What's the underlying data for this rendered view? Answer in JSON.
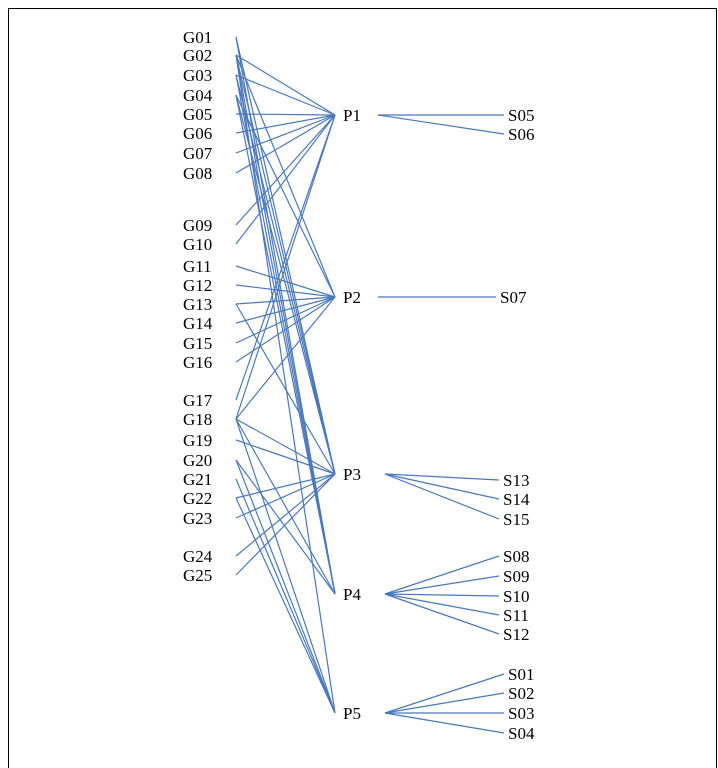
{
  "diagram": {
    "edge_color": "#4a78bd",
    "groups": {
      "G": [
        "G01",
        "G02",
        "G03",
        "G04",
        "G05",
        "G06",
        "G07",
        "G08",
        "G09",
        "G10",
        "G11",
        "G12",
        "G13",
        "G14",
        "G15",
        "G16",
        "G17",
        "G18",
        "G19",
        "G20",
        "G21",
        "G22",
        "G23",
        "G24",
        "G25"
      ],
      "P": [
        "P1",
        "P2",
        "P3",
        "P4",
        "P5"
      ],
      "S": [
        "S05",
        "S06",
        "S07",
        "S13",
        "S14",
        "S15",
        "S08",
        "S09",
        "S10",
        "S11",
        "S12",
        "S01",
        "S02",
        "S03",
        "S04"
      ]
    },
    "edges": [
      [
        "G01",
        "P3"
      ],
      [
        "G01",
        "P4"
      ],
      [
        "G02",
        "P1"
      ],
      [
        "G02",
        "P2"
      ],
      [
        "G02",
        "P3"
      ],
      [
        "G02",
        "P4"
      ],
      [
        "G02",
        "P5"
      ],
      [
        "G03",
        "P1"
      ],
      [
        "G03",
        "P3"
      ],
      [
        "G03",
        "P4"
      ],
      [
        "G04",
        "P2"
      ],
      [
        "G04",
        "P3"
      ],
      [
        "G04",
        "P4"
      ],
      [
        "G05",
        "P1"
      ],
      [
        "G06",
        "P1"
      ],
      [
        "G07",
        "P1"
      ],
      [
        "G08",
        "P1"
      ],
      [
        "G09",
        "P1"
      ],
      [
        "G10",
        "P1"
      ],
      [
        "G11",
        "P2"
      ],
      [
        "G12",
        "P2"
      ],
      [
        "G13",
        "P2"
      ],
      [
        "G13",
        "P3"
      ],
      [
        "G14",
        "P2"
      ],
      [
        "G15",
        "P2"
      ],
      [
        "G16",
        "P2"
      ],
      [
        "G17",
        "P1"
      ],
      [
        "G18",
        "P1"
      ],
      [
        "G18",
        "P2"
      ],
      [
        "G18",
        "P3"
      ],
      [
        "G18",
        "P4"
      ],
      [
        "G18",
        "P5"
      ],
      [
        "G19",
        "P3"
      ],
      [
        "G20",
        "P4"
      ],
      [
        "G20",
        "P5"
      ],
      [
        "G21",
        "P5"
      ],
      [
        "G22",
        "P3"
      ],
      [
        "G22",
        "P5"
      ],
      [
        "G23",
        "P3"
      ],
      [
        "G24",
        "P3"
      ],
      [
        "G25",
        "P3"
      ],
      [
        "P1",
        "S05"
      ],
      [
        "P1",
        "S06"
      ],
      [
        "P2",
        "S07"
      ],
      [
        "P3",
        "S13"
      ],
      [
        "P3",
        "S14"
      ],
      [
        "P3",
        "S15"
      ],
      [
        "P4",
        "S08"
      ],
      [
        "P4",
        "S09"
      ],
      [
        "P4",
        "S10"
      ],
      [
        "P4",
        "S11"
      ],
      [
        "P4",
        "S12"
      ],
      [
        "P5",
        "S01"
      ],
      [
        "P5",
        "S02"
      ],
      [
        "P5",
        "S03"
      ],
      [
        "P5",
        "S04"
      ]
    ]
  }
}
